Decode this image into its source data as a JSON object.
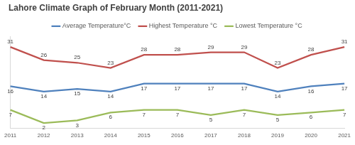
{
  "chart_data": {
    "type": "line",
    "title": "Lahore Climate Graph of February Month (2011-2021)",
    "categories": [
      "2011",
      "2012",
      "2013",
      "2014",
      "2015",
      "2016",
      "2017",
      "2018",
      "2019",
      "2020",
      "2021"
    ],
    "series": [
      {
        "name": "Average Temperature°C",
        "color": "#4f81bd",
        "values": [
          16,
          14,
          15,
          14,
          17,
          17,
          17,
          17,
          14,
          16,
          17
        ]
      },
      {
        "name": "Highest Temperature °C",
        "color": "#c0504d",
        "values": [
          31,
          26,
          25,
          23,
          28,
          28,
          29,
          29,
          23,
          28,
          31
        ]
      },
      {
        "name": "Lowest Temperature °C",
        "color": "#9bbb59",
        "values": [
          7,
          2,
          3,
          6,
          7,
          7,
          5,
          7,
          5,
          6,
          7
        ]
      }
    ],
    "ylim": [
      0,
      35
    ],
    "grid": false,
    "legend": "top",
    "data_labels": true,
    "tick_labels": "x"
  }
}
